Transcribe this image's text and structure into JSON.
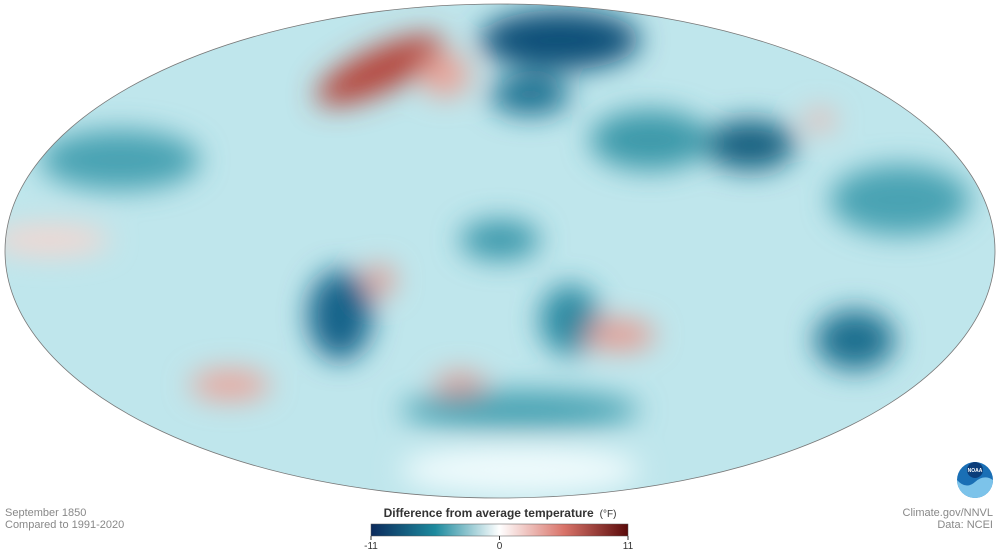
{
  "map": {
    "date": "September 1850",
    "baseline": "Compared to 1991-2020",
    "credit": "Climate.gov/NNVL",
    "source": "Data: NCEI",
    "logo": "NOAA"
  },
  "legend": {
    "title": "Difference from average temperature",
    "unit": "(°F)",
    "range": [
      -11,
      11
    ],
    "ticks": [
      -11,
      0,
      11
    ]
  }
}
